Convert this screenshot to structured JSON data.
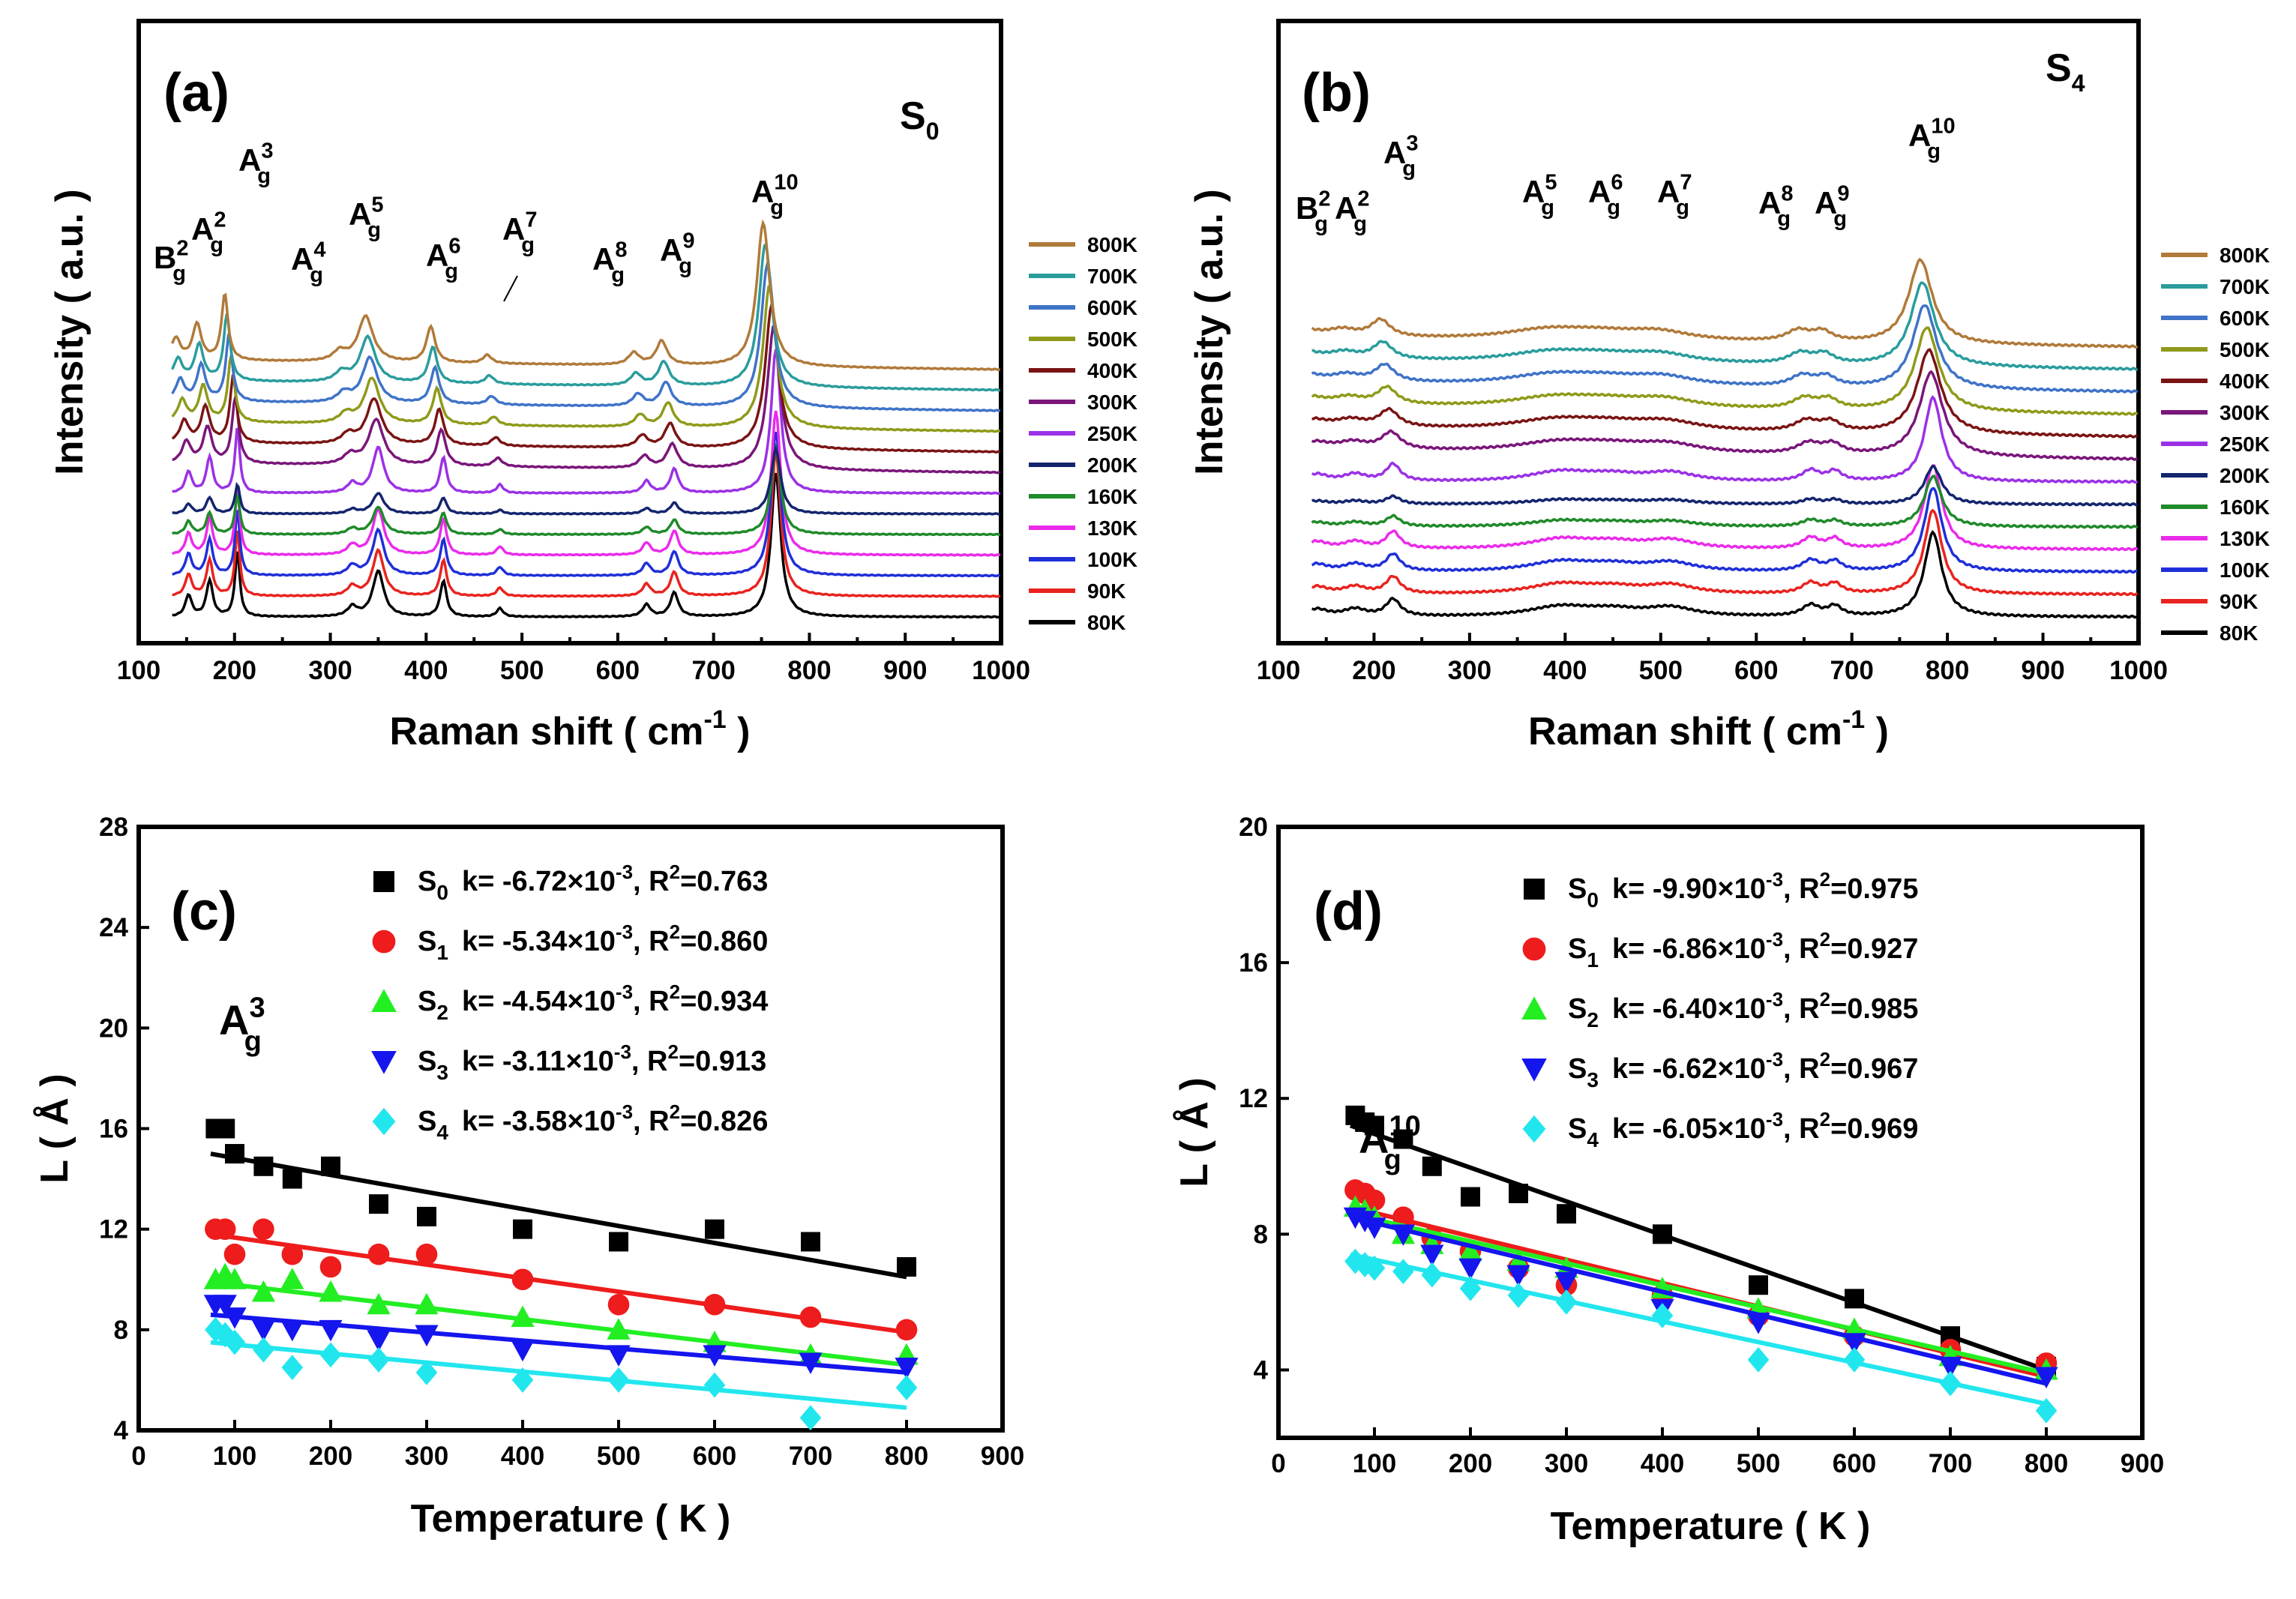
{
  "colors": {
    "80K": "#000000",
    "90K": "#e8231f",
    "100K": "#1f2fd8",
    "130K": "#ea2bea",
    "160K": "#1f8a2a",
    "200K": "#14256e",
    "250K": "#9b31e6",
    "300K": "#7a167a",
    "400K": "#7a1414",
    "500K": "#8f9a1a",
    "600K": "#3f73c8",
    "700K": "#2a9c9c",
    "800K": "#b07a3a",
    "S0": "#000000",
    "S1": "#ee1c1c",
    "S2": "#22ee22",
    "S3": "#1515ee",
    "S4": "#22e6ee"
  },
  "chart_data": [
    {
      "panel": "(a)",
      "sample_label": "S",
      "sample_sub": "0",
      "type": "line",
      "xlabel": "Raman shift ( cm",
      "xlabel_sup": "-1",
      "xlabel_close": " )",
      "ylabel": "Intensity ( a.u. )",
      "xlim": [
        100,
        1000
      ],
      "xticks": [
        "100",
        "200",
        "300",
        "400",
        "500",
        "600",
        "700",
        "800",
        "900",
        "1000"
      ],
      "temperatures": [
        "80K",
        "90K",
        "100K",
        "130K",
        "160K",
        "200K",
        "250K",
        "300K",
        "400K",
        "500K",
        "600K",
        "700K",
        "800K"
      ],
      "peaks": [
        {
          "x": 152,
          "w": 4,
          "h": 18,
          "name": "B",
          "sup": "2",
          "sub": "g"
        },
        {
          "x": 174,
          "w": 4,
          "h": 30,
          "name": "A",
          "sup": "2",
          "sub": "g"
        },
        {
          "x": 203,
          "w": 3,
          "h": 55,
          "name": "A",
          "sup": "3",
          "sub": "g"
        },
        {
          "x": 323,
          "w": 6,
          "h": 8,
          "name": "A",
          "sup": "4",
          "sub": "g"
        },
        {
          "x": 350,
          "w": 7,
          "h": 38,
          "name": "A",
          "sup": "5",
          "sub": "g"
        },
        {
          "x": 418,
          "w": 4,
          "h": 30,
          "name": "A",
          "sup": "6",
          "sub": "g"
        },
        {
          "x": 477,
          "w": 4,
          "h": 7,
          "name": "A",
          "sup": "7",
          "sub": "g"
        },
        {
          "x": 630,
          "w": 5,
          "h": 10,
          "name": "A",
          "sup": "8",
          "sub": "g"
        },
        {
          "x": 659,
          "w": 5,
          "h": 20,
          "name": "A",
          "sup": "9",
          "sub": "g"
        },
        {
          "x": 765,
          "w": 6,
          "h": 120,
          "name": "A",
          "sup": "10",
          "sub": "g"
        }
      ]
    },
    {
      "panel": "(b)",
      "sample_label": "S",
      "sample_sub": "4",
      "type": "line",
      "xlabel": "Raman shift ( cm",
      "xlabel_sup": "-1",
      "xlabel_close": " )",
      "ylabel": "Intensity ( a.u. )",
      "xlim": [
        100,
        1000
      ],
      "xticks": [
        "100",
        "200",
        "300",
        "400",
        "500",
        "600",
        "700",
        "800",
        "900",
        "1000"
      ],
      "temperatures": [
        "80K",
        "90K",
        "100K",
        "130K",
        "160K",
        "200K",
        "250K",
        "300K",
        "400K",
        "500K",
        "600K",
        "700K",
        "800K"
      ],
      "peaks": [
        {
          "x": 140,
          "w": 14,
          "h": 6,
          "name": "B",
          "sup": "2",
          "sub": "g"
        },
        {
          "x": 180,
          "w": 14,
          "h": 6,
          "name": "A",
          "sup": "2",
          "sub": "g"
        },
        {
          "x": 220,
          "w": 9,
          "h": 14,
          "name": "A",
          "sup": "3",
          "sub": "g"
        },
        {
          "x": 395,
          "w": 40,
          "h": 8,
          "name": "A",
          "sup": "5",
          "sub": "g"
        },
        {
          "x": 450,
          "w": 35,
          "h": 5,
          "name": "A",
          "sup": "6",
          "sub": "g"
        },
        {
          "x": 510,
          "w": 30,
          "h": 7,
          "name": "A",
          "sup": "7",
          "sub": "g"
        },
        {
          "x": 657,
          "w": 11,
          "h": 9,
          "name": "A",
          "sup": "8",
          "sub": "g"
        },
        {
          "x": 682,
          "w": 9,
          "h": 8,
          "name": "A",
          "sup": "9",
          "sub": "g"
        },
        {
          "x": 785,
          "w": 11,
          "h": 70,
          "name": "A",
          "sup": "10",
          "sub": "g"
        }
      ]
    },
    {
      "panel": "(c)",
      "type": "scatter",
      "mode_label": "A",
      "mode_sup": "3",
      "mode_sub": "g",
      "xlabel": "Temperature ( K )",
      "ylabel": "L ( Å )",
      "xlim": [
        0,
        900
      ],
      "ylim": [
        4,
        28
      ],
      "xticks": [
        0,
        100,
        200,
        300,
        400,
        500,
        600,
        700,
        800,
        900
      ],
      "yticks": [
        4,
        8,
        12,
        16,
        20,
        24,
        28
      ],
      "x": [
        80,
        90,
        100,
        130,
        160,
        200,
        250,
        300,
        400,
        500,
        600,
        700,
        800
      ],
      "series": [
        {
          "name": "S0",
          "marker": "square",
          "k": "-6.72×10",
          "k_exp": "-3",
          "r2": "0.763",
          "values": [
            16.0,
            16.0,
            15.0,
            14.5,
            14.0,
            14.5,
            13.0,
            12.5,
            12.0,
            11.5,
            12.0,
            11.5,
            10.5
          ],
          "fit": [
            15.0,
            10.1
          ]
        },
        {
          "name": "S1",
          "marker": "circle",
          "k": "-5.34×10",
          "k_exp": "-3",
          "r2": "0.860",
          "values": [
            12.0,
            12.0,
            11.0,
            12.0,
            11.0,
            10.5,
            11.0,
            11.0,
            10.0,
            9.0,
            9.0,
            8.5,
            8.0
          ],
          "fit": [
            11.8,
            7.9
          ]
        },
        {
          "name": "S2",
          "marker": "triangle-up",
          "k": "-4.54×10",
          "k_exp": "-3",
          "r2": "0.934",
          "values": [
            10.0,
            10.2,
            10.0,
            9.5,
            10.0,
            9.5,
            9.0,
            9.0,
            8.5,
            8.0,
            7.5,
            7.0,
            7.0
          ],
          "fit": [
            9.9,
            6.6
          ]
        },
        {
          "name": "S3",
          "marker": "triangle-down",
          "k": "-3.11×10",
          "k_exp": "-3",
          "r2": "0.913",
          "values": [
            9.0,
            9.0,
            8.5,
            8.0,
            8.0,
            8.0,
            7.6,
            7.8,
            7.2,
            7.0,
            7.0,
            6.7,
            6.5
          ],
          "fit": [
            8.6,
            6.3
          ]
        },
        {
          "name": "S4",
          "marker": "diamond",
          "k": "-3.58×10",
          "k_exp": "-3",
          "r2": "0.826",
          "values": [
            8.0,
            7.8,
            7.5,
            7.2,
            6.5,
            7.0,
            6.8,
            6.3,
            6.0,
            6.0,
            5.8,
            4.5,
            5.7
          ],
          "fit": [
            7.5,
            4.9
          ]
        }
      ]
    },
    {
      "panel": "(d)",
      "type": "scatter",
      "mode_label": "A",
      "mode_sup": "10",
      "mode_sub": "g",
      "xlabel": "Temperature ( K )",
      "ylabel": "L ( Å )",
      "xlim": [
        0,
        900
      ],
      "ylim": [
        2,
        20
      ],
      "xticks": [
        0,
        100,
        200,
        300,
        400,
        500,
        600,
        700,
        800,
        900
      ],
      "yticks": [
        4,
        8,
        12,
        16,
        20
      ],
      "x": [
        80,
        90,
        100,
        130,
        160,
        200,
        250,
        300,
        400,
        500,
        600,
        700,
        800
      ],
      "series": [
        {
          "name": "S0",
          "marker": "square",
          "k": "-9.90×10",
          "k_exp": "-3",
          "r2": "0.975",
          "values": [
            11.5,
            11.3,
            11.2,
            10.8,
            10.0,
            9.1,
            9.2,
            8.6,
            8.0,
            6.5,
            6.1,
            5.0,
            4.1
          ],
          "fit": [
            11.2,
            4.0
          ]
        },
        {
          "name": "S1",
          "marker": "circle",
          "k": "-6.86×10",
          "k_exp": "-3",
          "r2": "0.927",
          "values": [
            9.3,
            9.2,
            9.0,
            8.5,
            7.9,
            7.5,
            7.0,
            6.5,
            6.2,
            5.6,
            5.0,
            4.6,
            4.2
          ],
          "fit": [
            8.8,
            3.8
          ]
        },
        {
          "name": "S2",
          "marker": "triangle-up",
          "k": "-6.40×10",
          "k_exp": "-3",
          "r2": "0.985",
          "values": [
            8.8,
            8.7,
            8.5,
            8.0,
            7.7,
            7.5,
            7.2,
            7.0,
            6.4,
            5.8,
            5.2,
            4.4,
            4.0
          ],
          "fit": [
            8.6,
            3.9
          ]
        },
        {
          "name": "S3",
          "marker": "triangle-down",
          "k": "-6.62×10",
          "k_exp": "-3",
          "r2": "0.967",
          "values": [
            8.5,
            8.4,
            8.2,
            8.0,
            7.4,
            7.0,
            6.8,
            6.6,
            5.8,
            5.4,
            4.8,
            4.1,
            3.8
          ],
          "fit": [
            8.5,
            3.6
          ]
        },
        {
          "name": "S4",
          "marker": "diamond",
          "k": "-6.05×10",
          "k_exp": "-3",
          "r2": "0.969",
          "values": [
            7.2,
            7.1,
            7.0,
            6.9,
            6.8,
            6.4,
            6.2,
            6.0,
            5.6,
            4.3,
            4.3,
            3.6,
            2.8
          ],
          "fit": [
            7.4,
            3.0
          ]
        }
      ]
    }
  ]
}
